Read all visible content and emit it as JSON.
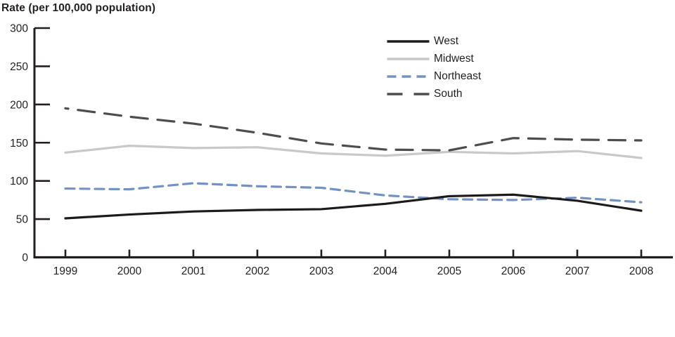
{
  "chart_data": {
    "type": "line",
    "title": "Rate (per 100,000 population)",
    "xlabel": "",
    "ylabel": "Rate (per 100,000 population)",
    "x": [
      1999,
      2000,
      2001,
      2002,
      2003,
      2004,
      2005,
      2006,
      2007,
      2008
    ],
    "x_tick_labels": [
      "1999",
      "2000",
      "2001",
      "2002",
      "2003",
      "2004",
      "2005",
      "2006",
      "2007",
      "2008"
    ],
    "ylim": [
      0,
      300
    ],
    "y_ticks": [
      0,
      50,
      100,
      150,
      200,
      250,
      300
    ],
    "grid": false,
    "legend_position": "inside-top-center",
    "axis_color": "#231f20",
    "series": [
      {
        "name": "West",
        "color": "#1c1a1b",
        "dash": "solid",
        "values": [
          51,
          56,
          60,
          62,
          63,
          70,
          80,
          82,
          74,
          61
        ]
      },
      {
        "name": "Midwest",
        "color": "#c9c9cb",
        "dash": "solid",
        "values": [
          137,
          146,
          143,
          144,
          136,
          133,
          138,
          136,
          139,
          130
        ]
      },
      {
        "name": "Northeast",
        "color": "#7291c5",
        "dash": "dash",
        "values": [
          90,
          89,
          97,
          93,
          91,
          81,
          76,
          75,
          78,
          72
        ]
      },
      {
        "name": "South",
        "color": "#4d4d4f",
        "dash": "long-dash",
        "values": [
          195,
          184,
          175,
          163,
          149,
          141,
          140,
          156,
          154,
          153
        ]
      }
    ]
  }
}
